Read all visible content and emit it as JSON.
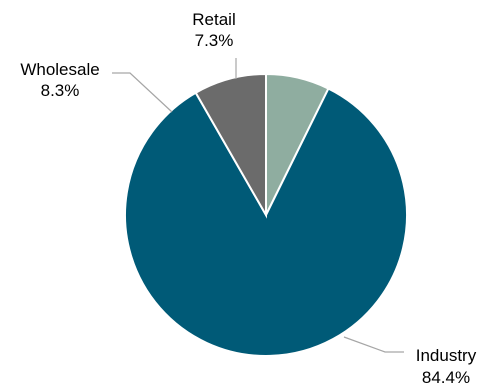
{
  "chart_data": {
    "type": "pie",
    "title": "",
    "slices": [
      {
        "name": "Retail",
        "value": 7.3,
        "label": "7.3%",
        "color": "#8fada0"
      },
      {
        "name": "Industry",
        "value": 84.4,
        "label": "84.4%",
        "color": "#005a77"
      },
      {
        "name": "Wholesale",
        "value": 8.3,
        "label": "8.3%",
        "color": "#6b6b6b"
      }
    ],
    "start_angle_deg": 0,
    "direction": "clockwise",
    "legend": "none",
    "labels": "outside-with-leader-lines"
  }
}
